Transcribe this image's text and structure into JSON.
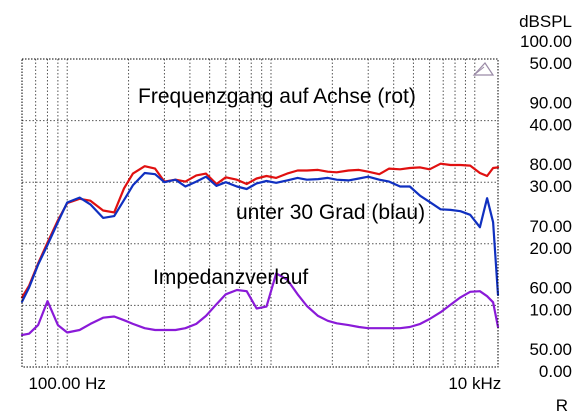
{
  "chart_data": {
    "type": "line",
    "title": "",
    "x_scale": "log",
    "xlim": [
      60,
      13000
    ],
    "x_tick_labels": [
      {
        "value": 100,
        "label": "100.00 Hz"
      },
      {
        "value": 10000,
        "label": "10 kHz"
      }
    ],
    "y_left_unit": "dBSPL",
    "y_left_ticks": [
      "100.00",
      "90.00",
      "80.00",
      "70.00",
      "60.00",
      "50.00"
    ],
    "ylim_left": [
      50,
      100
    ],
    "y_right_unit": "R",
    "y_right_ticks": [
      "50.00",
      "40.00",
      "30.00",
      "20.00",
      "10.00",
      "0.00"
    ],
    "ylim_right": [
      0,
      50
    ],
    "grid": true,
    "annotations": [
      "Frequenzgang auf Achse (rot)",
      "unter 30 Grad (blau)",
      "Impedanzverlauf"
    ],
    "series": [
      {
        "color": "#e01010",
        "axis": "left",
        "x": [
          60,
          65,
          72,
          80,
          90,
          100,
          115,
          130,
          150,
          170,
          190,
          210,
          240,
          270,
          300,
          340,
          380,
          430,
          480,
          540,
          600,
          680,
          760,
          850,
          950,
          1060,
          1200,
          1350,
          1500,
          1700,
          1900,
          2100,
          2400,
          2700,
          3000,
          3400,
          3800,
          4300,
          4800,
          5400,
          6000,
          6800,
          7600,
          8500,
          9500,
          10600,
          11500,
          12300,
          13000
        ],
        "values": [
          61.3,
          63.2,
          66.8,
          70.2,
          73.8,
          76.6,
          77.3,
          77.0,
          75.4,
          75.1,
          79.0,
          81.4,
          82.6,
          82.2,
          80.1,
          80.4,
          80.1,
          81.1,
          81.4,
          79.7,
          80.8,
          80.4,
          79.7,
          80.6,
          81.0,
          80.7,
          81.4,
          81.9,
          81.9,
          82.0,
          81.7,
          81.6,
          81.9,
          82.0,
          81.7,
          81.3,
          82.2,
          82.1,
          82.3,
          82.4,
          82.1,
          83.0,
          82.8,
          82.8,
          82.7,
          81.5,
          81.0,
          82.3,
          82.4
        ]
      },
      {
        "color": "#1030c0",
        "axis": "left",
        "x": [
          60,
          65,
          72,
          80,
          90,
          100,
          115,
          130,
          150,
          170,
          190,
          210,
          240,
          270,
          300,
          340,
          380,
          430,
          480,
          540,
          600,
          680,
          760,
          850,
          950,
          1060,
          1200,
          1350,
          1500,
          1700,
          1900,
          2100,
          2400,
          2700,
          3000,
          3400,
          3800,
          4300,
          4800,
          5400,
          6000,
          6800,
          7600,
          8500,
          9500,
          10600,
          11500,
          12300,
          13000
        ],
        "values": [
          60.6,
          62.9,
          66.6,
          69.8,
          73.5,
          76.7,
          77.5,
          76.4,
          74.2,
          74.5,
          77.1,
          79.5,
          81.5,
          81.3,
          80.0,
          80.4,
          79.3,
          80.1,
          80.9,
          79.4,
          80.0,
          79.3,
          78.9,
          79.8,
          80.2,
          79.9,
          80.3,
          80.7,
          80.4,
          80.5,
          80.7,
          80.4,
          80.3,
          80.6,
          80.9,
          80.4,
          80.1,
          79.3,
          79.3,
          77.8,
          76.8,
          75.6,
          75.5,
          75.3,
          74.7,
          72.7,
          77.4,
          73.5,
          61.7
        ]
      },
      {
        "color": "#8a1ad8",
        "axis": "right",
        "x": [
          60,
          65,
          72,
          80,
          90,
          100,
          115,
          130,
          150,
          170,
          190,
          210,
          240,
          270,
          300,
          340,
          380,
          430,
          480,
          540,
          600,
          680,
          760,
          850,
          950,
          1060,
          1200,
          1350,
          1500,
          1700,
          1900,
          2100,
          2400,
          2700,
          3000,
          3400,
          3800,
          4300,
          4800,
          5400,
          6000,
          6800,
          7600,
          8500,
          9500,
          10600,
          11500,
          12300,
          13000
        ],
        "values": [
          5.2,
          5.4,
          6.8,
          10.7,
          6.8,
          5.6,
          6.0,
          7.0,
          8.0,
          8.2,
          7.6,
          7.0,
          6.3,
          6.0,
          6.0,
          6.0,
          6.3,
          7.0,
          8.3,
          10.2,
          11.8,
          12.5,
          12.3,
          9.5,
          9.8,
          15.2,
          14.2,
          11.8,
          9.9,
          8.3,
          7.5,
          7.1,
          6.8,
          6.5,
          6.3,
          6.3,
          6.3,
          6.3,
          6.5,
          7.0,
          7.8,
          8.9,
          10.1,
          11.3,
          12.2,
          12.3,
          11.5,
          10.5,
          6.5
        ]
      }
    ]
  }
}
